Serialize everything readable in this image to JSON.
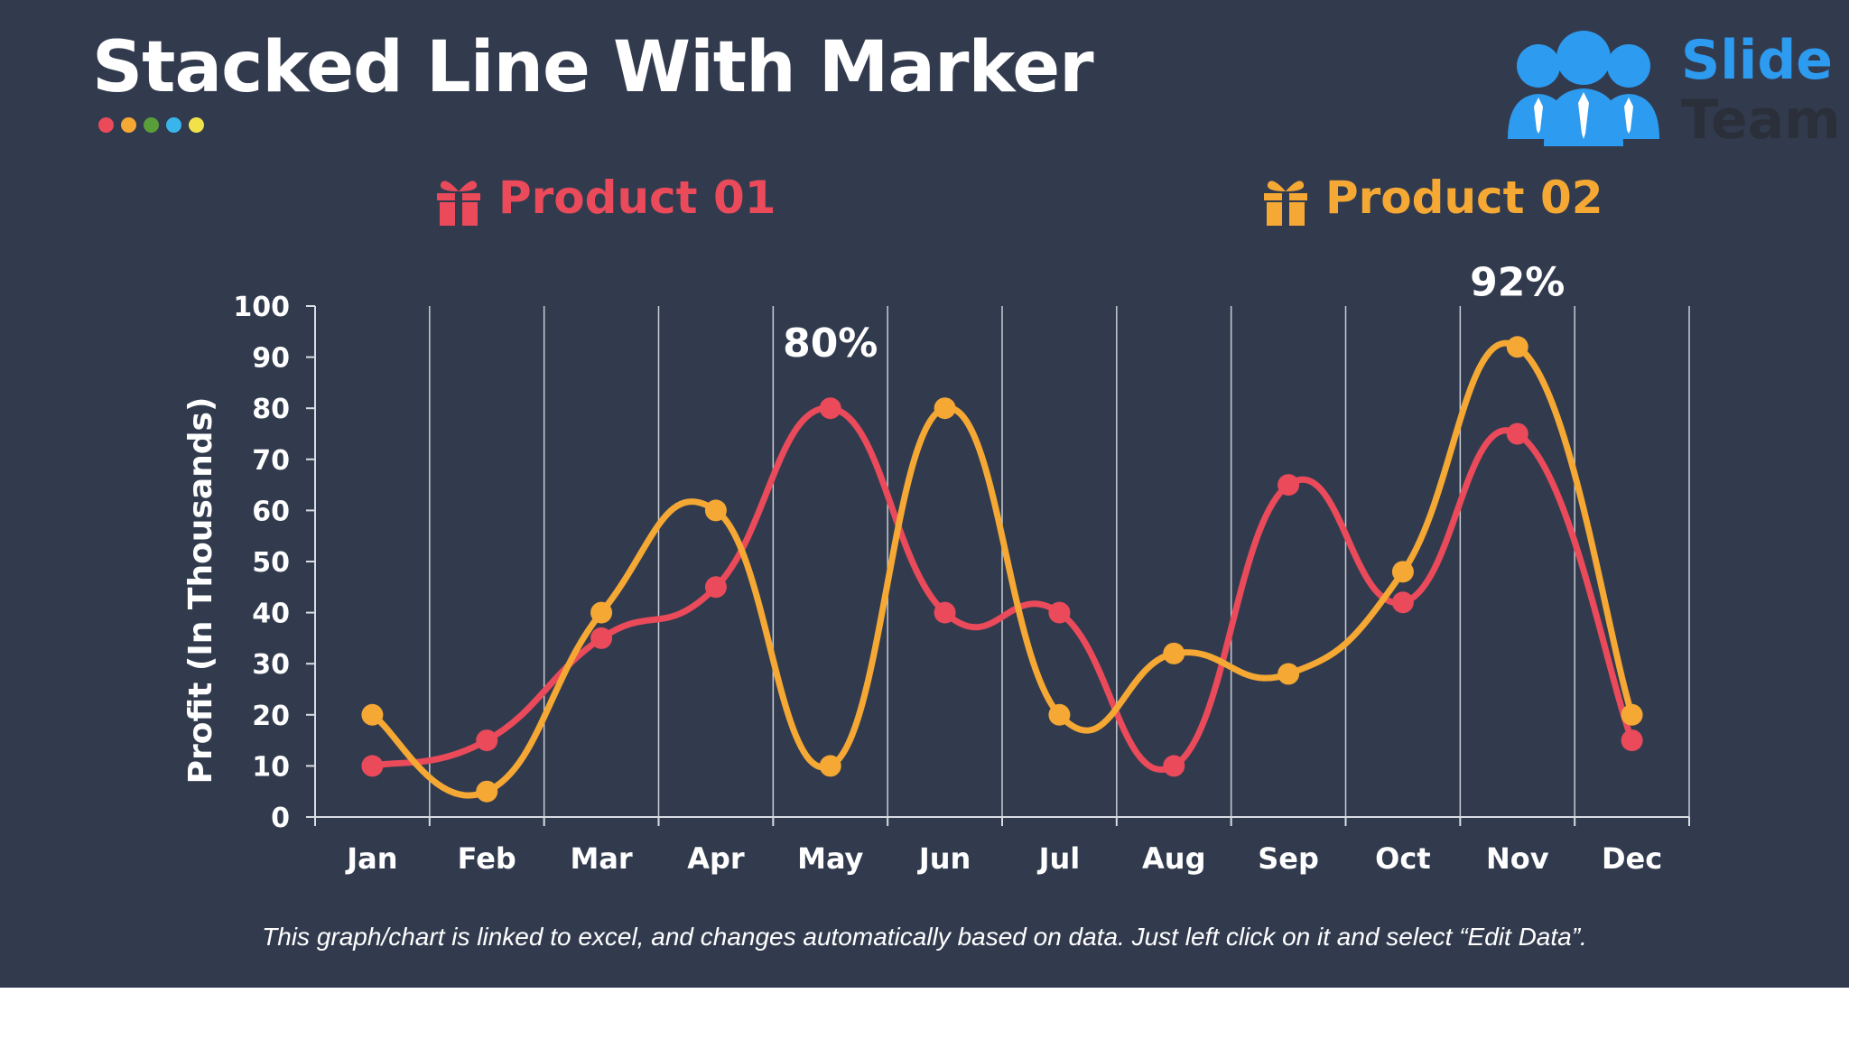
{
  "slide": {
    "title": "Stacked Line With Marker",
    "title_dots": [
      "#ea4a5a",
      "#f5a833",
      "#5a9e3a",
      "#3ab5ec",
      "#f2e24a"
    ],
    "logo": {
      "word1": "Slide",
      "word2": "Team"
    },
    "footnote": "This graph/chart is linked to excel, and changes automatically based on data. Just left click on it and select “Edit Data”."
  },
  "legend": [
    {
      "label": "Product 01",
      "color": "#ea4a5a",
      "icon": "box-icon"
    },
    {
      "label": "Product 02",
      "color": "#f5a833",
      "icon": "box-icon"
    }
  ],
  "chart_data": {
    "type": "line",
    "categories": [
      "Jan",
      "Feb",
      "Mar",
      "Apr",
      "May",
      "Jun",
      "Jul",
      "Aug",
      "Sep",
      "Oct",
      "Nov",
      "Dec"
    ],
    "series": [
      {
        "name": "Product 01",
        "color": "#ea4a5a",
        "values": [
          10,
          15,
          35,
          45,
          80,
          40,
          40,
          10,
          65,
          42,
          75,
          15
        ]
      },
      {
        "name": "Product 02",
        "color": "#f5a833",
        "values": [
          20,
          5,
          40,
          60,
          10,
          80,
          20,
          32,
          28,
          48,
          92,
          20
        ]
      }
    ],
    "ylabel": "Profit (In Thousands)",
    "xlabel": "",
    "ylim": [
      0,
      100
    ],
    "yticks": [
      0,
      10,
      20,
      30,
      40,
      50,
      60,
      70,
      80,
      90,
      100
    ],
    "smooth": true,
    "markers": true,
    "grid": "vertical",
    "annotations": [
      {
        "text": "80%",
        "series": 0,
        "index": 4,
        "value": 80
      },
      {
        "text": "92%",
        "series": 1,
        "index": 10,
        "value": 92
      }
    ]
  }
}
